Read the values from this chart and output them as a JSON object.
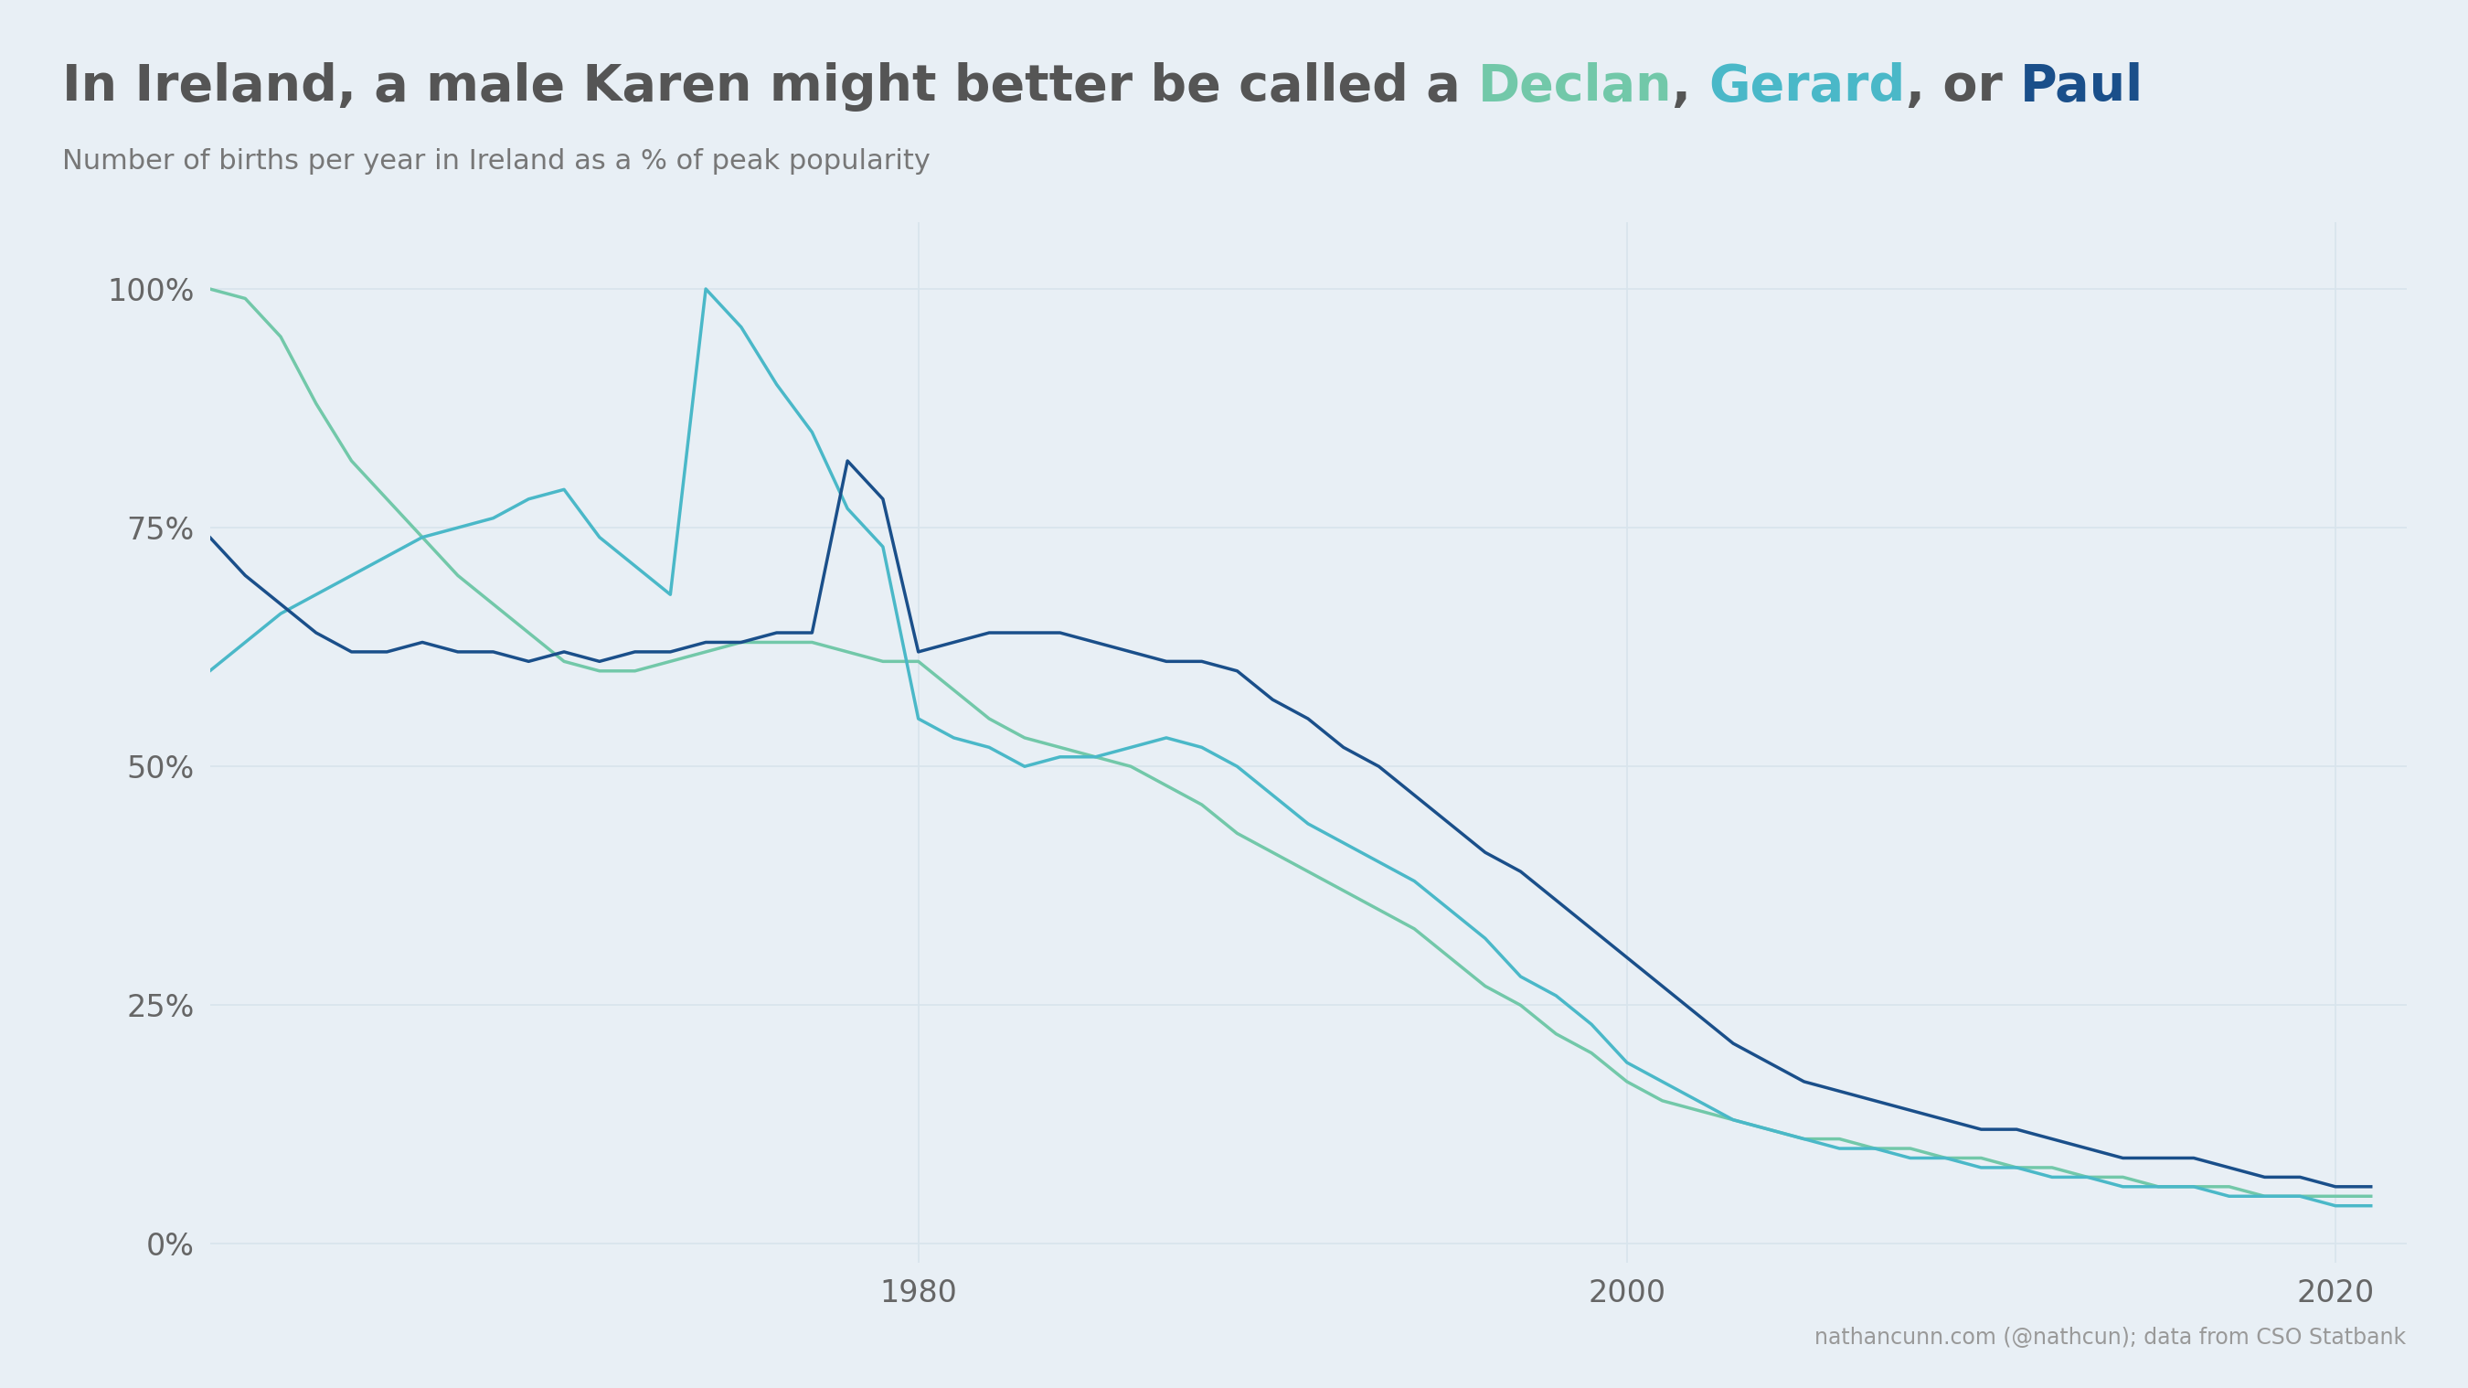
{
  "title_prefix": "In Ireland, a male Karen might better be called a ",
  "title_names": [
    "Declan",
    "Gerard",
    "Paul"
  ],
  "subtitle": "Number of births per year in Ireland as a % of peak popularity",
  "attribution": "nathancunn.com (@nathcun); data from CSO Statbank",
  "name_colors": {
    "Declan": "#72c8a9",
    "Gerard": "#4ab8c8",
    "Paul": "#1a4f8a"
  },
  "background_color": "#e8eff5",
  "text_color": "#666666",
  "grid_color": "#d8e4ec",
  "years": [
    1960,
    1961,
    1962,
    1963,
    1964,
    1965,
    1966,
    1967,
    1968,
    1969,
    1970,
    1971,
    1972,
    1973,
    1974,
    1975,
    1976,
    1977,
    1978,
    1979,
    1980,
    1981,
    1982,
    1983,
    1984,
    1985,
    1986,
    1987,
    1988,
    1989,
    1990,
    1991,
    1992,
    1993,
    1994,
    1995,
    1996,
    1997,
    1998,
    1999,
    2000,
    2001,
    2002,
    2003,
    2004,
    2005,
    2006,
    2007,
    2008,
    2009,
    2010,
    2011,
    2012,
    2013,
    2014,
    2015,
    2016,
    2017,
    2018,
    2019,
    2020,
    2021
  ],
  "declan": [
    100,
    99,
    95,
    88,
    82,
    78,
    74,
    70,
    67,
    64,
    61,
    60,
    60,
    61,
    62,
    63,
    63,
    63,
    62,
    61,
    61,
    58,
    55,
    53,
    52,
    51,
    50,
    48,
    46,
    43,
    41,
    39,
    37,
    35,
    33,
    30,
    27,
    25,
    22,
    20,
    17,
    15,
    14,
    13,
    12,
    11,
    11,
    10,
    10,
    9,
    9,
    8,
    8,
    7,
    7,
    6,
    6,
    6,
    5,
    5,
    5,
    5
  ],
  "gerard": [
    60,
    63,
    66,
    68,
    70,
    72,
    74,
    75,
    76,
    78,
    79,
    74,
    71,
    68,
    100,
    96,
    90,
    85,
    77,
    73,
    55,
    53,
    52,
    50,
    51,
    51,
    52,
    53,
    52,
    50,
    47,
    44,
    42,
    40,
    38,
    35,
    32,
    28,
    26,
    23,
    19,
    17,
    15,
    13,
    12,
    11,
    10,
    10,
    9,
    9,
    8,
    8,
    7,
    7,
    6,
    6,
    6,
    5,
    5,
    5,
    4,
    4
  ],
  "paul": [
    74,
    70,
    67,
    64,
    62,
    62,
    63,
    62,
    62,
    61,
    62,
    61,
    62,
    62,
    63,
    63,
    64,
    64,
    82,
    78,
    62,
    63,
    64,
    64,
    64,
    63,
    62,
    61,
    61,
    60,
    57,
    55,
    52,
    50,
    47,
    44,
    41,
    39,
    36,
    33,
    30,
    27,
    24,
    21,
    19,
    17,
    16,
    15,
    14,
    13,
    12,
    12,
    11,
    10,
    9,
    9,
    9,
    8,
    7,
    7,
    6,
    6
  ],
  "xlim": [
    1960,
    2022
  ],
  "ylim": [
    -2,
    107
  ],
  "xticks": [
    1980,
    2000,
    2020
  ],
  "yticks": [
    0,
    25,
    50,
    75,
    100
  ]
}
